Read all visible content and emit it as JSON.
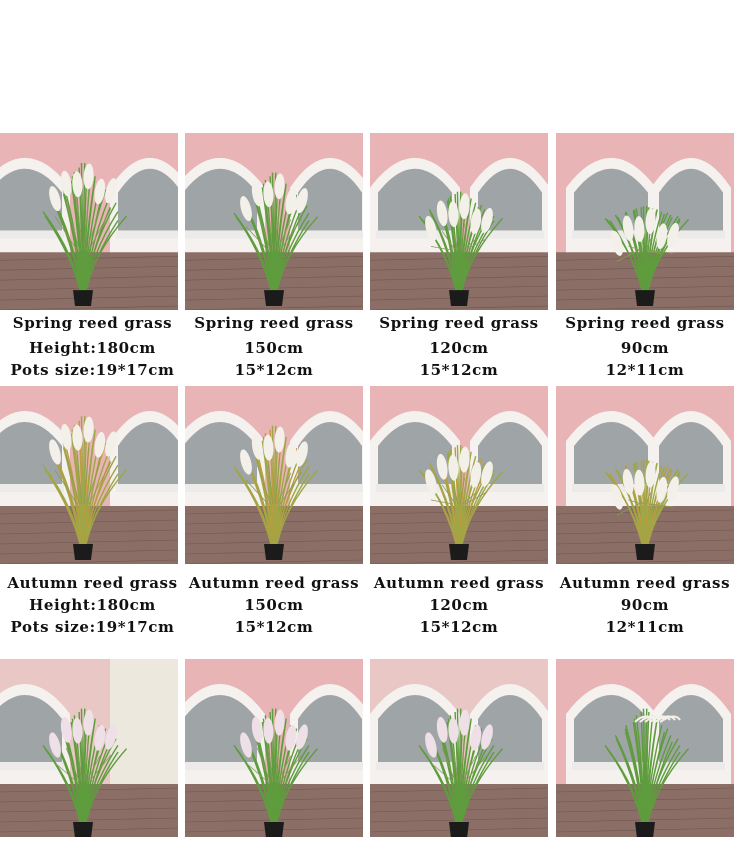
{
  "rows": [
    {
      "variant": "spring",
      "items": [
        {
          "name": "Spring reed grass",
          "height": "Height:180cm",
          "pot": "Pots size:19*17cm"
        },
        {
          "name": "Spring reed grass",
          "height": "150cm",
          "pot": "15*12cm"
        },
        {
          "name": "Spring reed grass",
          "height": "120cm",
          "pot": "15*12cm"
        },
        {
          "name": "Spring reed grass",
          "height": "90cm",
          "pot": "12*11cm"
        }
      ]
    },
    {
      "variant": "autumn",
      "items": [
        {
          "name": "Autumn reed grass",
          "height": "Height:180cm",
          "pot": "Pots size:19*17cm"
        },
        {
          "name": "Autumn reed grass",
          "height": "150cm",
          "pot": "15*12cm"
        },
        {
          "name": "Autumn reed grass",
          "height": "120cm",
          "pot": "15*12cm"
        },
        {
          "name": "Autumn reed grass",
          "height": "90cm",
          "pot": "12*11cm"
        }
      ]
    },
    {
      "variant": "third",
      "items": [
        {},
        {},
        {},
        {}
      ]
    }
  ],
  "colors": {
    "wall": "#e8b4b6",
    "floor": "#8b6f66",
    "leaf_spring": "#5f9c3e",
    "leaf_autumn": "#9ea646",
    "plume": "#f3efe9",
    "pot": "#1b1b1b"
  }
}
